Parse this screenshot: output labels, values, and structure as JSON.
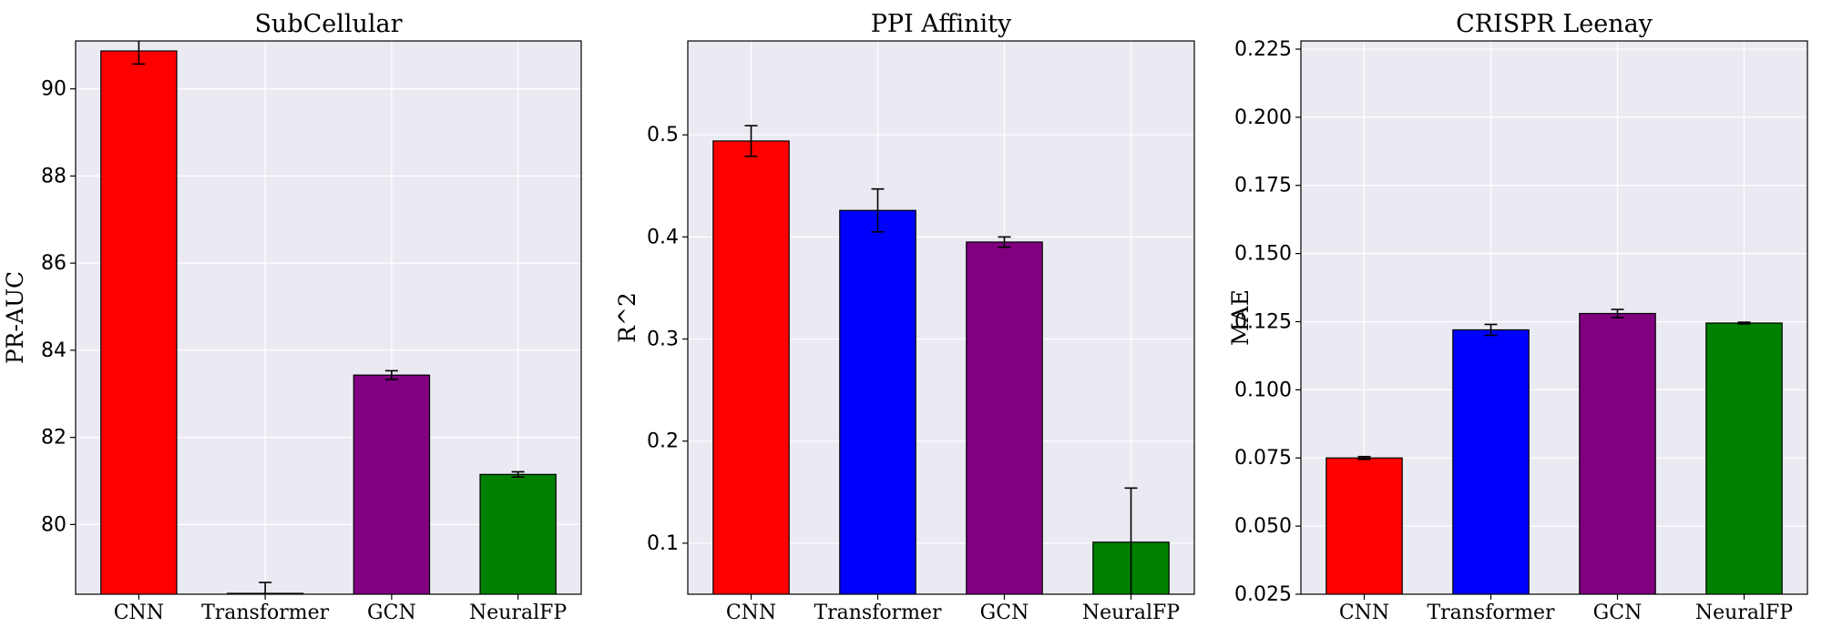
{
  "chart_data": [
    {
      "type": "bar",
      "title": "SubCellular",
      "ylabel": "PR-AUC",
      "categories": [
        "CNN",
        "Transformer",
        "GCN",
        "NeuralFP"
      ],
      "values": [
        90.87,
        78.42,
        83.43,
        81.15
      ],
      "errors": [
        0.3,
        0.25,
        0.1,
        0.06
      ],
      "colors": [
        "#ff0000",
        "#0000ff",
        "#800080",
        "#008000"
      ],
      "ylim": [
        78.4,
        91.1
      ],
      "yticks": [
        80,
        82,
        84,
        86,
        88,
        90
      ],
      "ytick_labels": [
        "80",
        "82",
        "84",
        "86",
        "88",
        "90"
      ],
      "grid": true
    },
    {
      "type": "bar",
      "title": "PPI Affinity",
      "ylabel": "R^2",
      "categories": [
        "CNN",
        "Transformer",
        "GCN",
        "NeuralFP"
      ],
      "values": [
        0.494,
        0.426,
        0.395,
        0.101
      ],
      "errors": [
        0.015,
        0.021,
        0.005,
        0.053
      ],
      "colors": [
        "#ff0000",
        "#0000ff",
        "#800080",
        "#008000"
      ],
      "ylim": [
        0.05,
        0.592
      ],
      "yticks": [
        0.1,
        0.2,
        0.3,
        0.4,
        0.5
      ],
      "ytick_labels": [
        "0.1",
        "0.2",
        "0.3",
        "0.4",
        "0.5"
      ],
      "grid": true
    },
    {
      "type": "bar",
      "title": "CRISPR Leenay",
      "ylabel": "MAE",
      "categories": [
        "CNN",
        "Transformer",
        "GCN",
        "NeuralFP"
      ],
      "values": [
        0.075,
        0.122,
        0.128,
        0.1245
      ],
      "errors": [
        0.0005,
        0.002,
        0.0015,
        0.0003
      ],
      "colors": [
        "#ff0000",
        "#0000ff",
        "#800080",
        "#008000"
      ],
      "ylim": [
        0.025,
        0.228
      ],
      "yticks": [
        0.025,
        0.05,
        0.075,
        0.1,
        0.125,
        0.15,
        0.175,
        0.2,
        0.225
      ],
      "ytick_labels": [
        "0.025",
        "0.050",
        "0.075",
        "0.100",
        "0.125",
        "0.150",
        "0.175",
        "0.200",
        "0.225"
      ],
      "grid": true
    }
  ]
}
